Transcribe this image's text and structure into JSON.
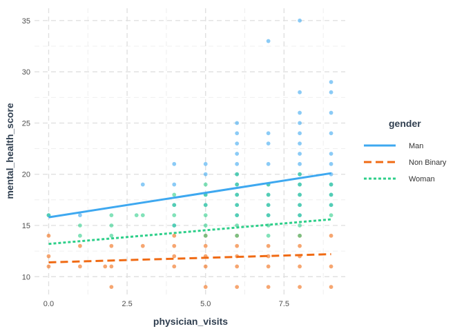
{
  "chart_data": {
    "type": "scatter",
    "xlabel": "physician_visits",
    "ylabel": "mental_health_score",
    "xlim": [
      -0.45,
      9.45
    ],
    "ylim": [
      8.2,
      36.2
    ],
    "x_ticks": [
      0,
      2.5,
      5,
      7.5
    ],
    "x_tick_labels": [
      "0.0",
      "2.5",
      "5.0",
      "7.5"
    ],
    "y_ticks": [
      10,
      15,
      20,
      25,
      30,
      35
    ],
    "y_tick_labels": [
      "10",
      "15",
      "20",
      "25",
      "30",
      "35"
    ],
    "grid": true,
    "legend": {
      "title": "gender",
      "position": "right"
    },
    "series": [
      {
        "name": "Man",
        "color": "#3ea8f0",
        "line_style": "solid",
        "points": [
          [
            0,
            16
          ],
          [
            1,
            16
          ],
          [
            3,
            19
          ],
          [
            4,
            21
          ],
          [
            4,
            19
          ],
          [
            4,
            17
          ],
          [
            4,
            15
          ],
          [
            5,
            21
          ],
          [
            5,
            20
          ],
          [
            5,
            18
          ],
          [
            5,
            17
          ],
          [
            6,
            25
          ],
          [
            6,
            24
          ],
          [
            6,
            23
          ],
          [
            6,
            22
          ],
          [
            6,
            21
          ],
          [
            6,
            20
          ],
          [
            6,
            19
          ],
          [
            6,
            18
          ],
          [
            6,
            17
          ],
          [
            6,
            16
          ],
          [
            7,
            33
          ],
          [
            7,
            24
          ],
          [
            7,
            23
          ],
          [
            7,
            21
          ],
          [
            7,
            19
          ],
          [
            7,
            18
          ],
          [
            7,
            17
          ],
          [
            7,
            16
          ],
          [
            8,
            35
          ],
          [
            8,
            28
          ],
          [
            8,
            26
          ],
          [
            8,
            25
          ],
          [
            8,
            24
          ],
          [
            8,
            23
          ],
          [
            8,
            22
          ],
          [
            8,
            21
          ],
          [
            8,
            20
          ],
          [
            8,
            19
          ],
          [
            8,
            18
          ],
          [
            8,
            17
          ],
          [
            8,
            16
          ],
          [
            9,
            29
          ],
          [
            9,
            28
          ],
          [
            9,
            26
          ],
          [
            9,
            24
          ],
          [
            9,
            22
          ],
          [
            9,
            21
          ],
          [
            9,
            20
          ],
          [
            9,
            19
          ],
          [
            9,
            18
          ],
          [
            9,
            17
          ]
        ],
        "trend": [
          [
            0,
            15.8
          ],
          [
            9,
            20.1
          ]
        ]
      },
      {
        "name": "Non Binary",
        "color": "#f06a13",
        "line_style": "dashed",
        "points": [
          [
            0,
            14
          ],
          [
            0,
            12
          ],
          [
            0,
            11
          ],
          [
            1,
            13
          ],
          [
            1,
            11
          ],
          [
            2,
            13
          ],
          [
            2,
            11
          ],
          [
            2,
            9
          ],
          [
            1.8,
            11
          ],
          [
            3,
            13
          ],
          [
            4,
            14
          ],
          [
            4,
            13
          ],
          [
            4,
            12
          ],
          [
            4,
            11
          ],
          [
            5,
            14
          ],
          [
            5,
            13
          ],
          [
            5,
            12
          ],
          [
            5,
            11
          ],
          [
            5,
            9
          ],
          [
            6,
            14
          ],
          [
            6,
            13
          ],
          [
            6,
            12
          ],
          [
            6,
            11
          ],
          [
            6,
            9
          ],
          [
            7,
            13
          ],
          [
            7,
            12
          ],
          [
            7,
            11
          ],
          [
            7,
            9
          ],
          [
            8,
            14
          ],
          [
            8,
            13
          ],
          [
            8,
            12
          ],
          [
            8,
            11
          ],
          [
            8,
            9
          ],
          [
            9,
            14
          ],
          [
            9,
            11
          ],
          [
            9,
            9
          ]
        ],
        "trend": [
          [
            0,
            11.4
          ],
          [
            9,
            12.2
          ]
        ]
      },
      {
        "name": "Woman",
        "color": "#2ecf8a",
        "line_style": "dotted",
        "points": [
          [
            0,
            16
          ],
          [
            1,
            15
          ],
          [
            1,
            14
          ],
          [
            2,
            16
          ],
          [
            2,
            15
          ],
          [
            2,
            14
          ],
          [
            2.8,
            16
          ],
          [
            3,
            16
          ],
          [
            4,
            18
          ],
          [
            4,
            17
          ],
          [
            4,
            16
          ],
          [
            4,
            15
          ],
          [
            5,
            19
          ],
          [
            5,
            18
          ],
          [
            5,
            17
          ],
          [
            5,
            16
          ],
          [
            5,
            15
          ],
          [
            5,
            14
          ],
          [
            6,
            20
          ],
          [
            6,
            19
          ],
          [
            6,
            18
          ],
          [
            6,
            17
          ],
          [
            6,
            16
          ],
          [
            6,
            15
          ],
          [
            6,
            14
          ],
          [
            7,
            19
          ],
          [
            7,
            18
          ],
          [
            7,
            17
          ],
          [
            7,
            16
          ],
          [
            7,
            15
          ],
          [
            7,
            14
          ],
          [
            8,
            20
          ],
          [
            8,
            19
          ],
          [
            8,
            18
          ],
          [
            8,
            17
          ],
          [
            8,
            16
          ],
          [
            8,
            15
          ],
          [
            8,
            14
          ],
          [
            9,
            19
          ],
          [
            9,
            18
          ],
          [
            9,
            17
          ],
          [
            9,
            16
          ]
        ],
        "trend": [
          [
            0,
            13.2
          ],
          [
            9,
            15.6
          ]
        ]
      }
    ]
  }
}
